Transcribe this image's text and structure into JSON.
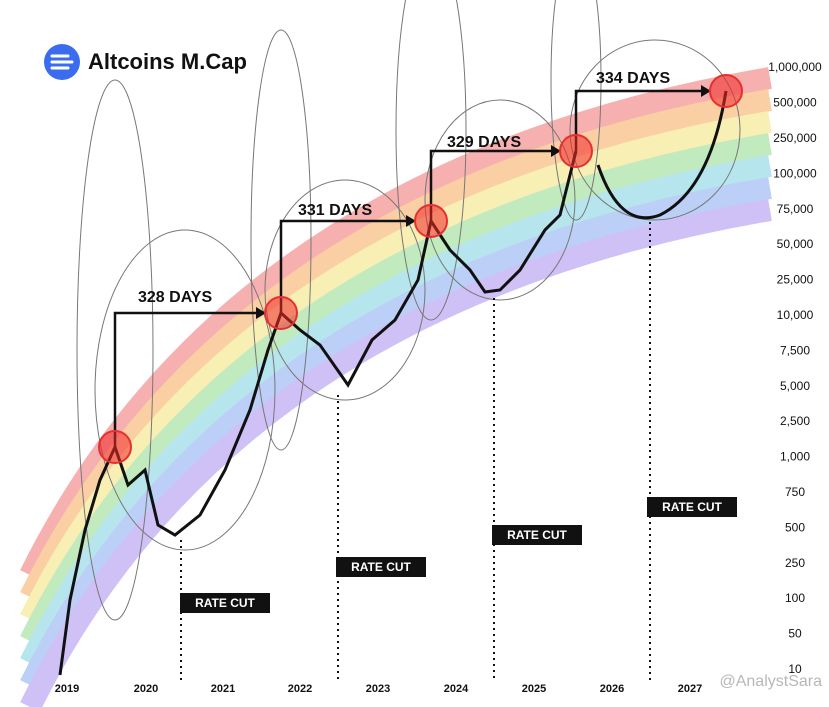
{
  "header": {
    "title": "Altcoins M.Cap"
  },
  "chart_data": {
    "type": "rainbow",
    "categories": [
      "2019",
      "2020",
      "2021",
      "2022",
      "2023",
      "2024",
      "2025",
      "2026",
      "2027"
    ],
    "yticks": [
      {
        "value": 1000000,
        "label": "1,000,000"
      },
      {
        "value": 500000,
        "label": "500,000"
      },
      {
        "value": 250000,
        "label": "250,000"
      },
      {
        "value": 100000,
        "label": "100,000"
      },
      {
        "value": 75000,
        "label": "75,000"
      },
      {
        "value": 50000,
        "label": "50,000"
      },
      {
        "value": 25000,
        "label": "25,000"
      },
      {
        "value": 10000,
        "label": "10,000"
      },
      {
        "value": 7500,
        "label": "7,500"
      },
      {
        "value": 5000,
        "label": "5,000"
      },
      {
        "value": 2500,
        "label": "2,500"
      },
      {
        "value": 1000,
        "label": "1,000"
      },
      {
        "value": 750,
        "label": "750"
      },
      {
        "value": 500,
        "label": "500"
      },
      {
        "value": 250,
        "label": "250"
      },
      100,
      50,
      10
    ],
    "cycle_labels": [
      "328 DAYS",
      "331 DAYS",
      "329 DAYS",
      "334 DAYS"
    ],
    "event_labels": [
      "RATE CUT",
      "RATE CUT",
      "RATE CUT",
      "RATE CUT"
    ]
  },
  "watermark": "@AnalystSara"
}
